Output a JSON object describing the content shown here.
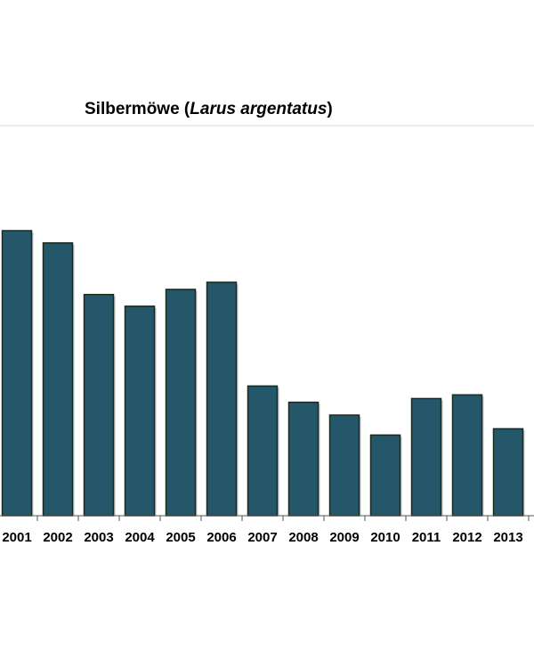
{
  "chart_data": {
    "type": "bar",
    "title_parts": {
      "common_name": "Silbermöwe",
      "open_paren": " (",
      "scientific_name": "Larus argentatus",
      "close_paren": ")"
    },
    "title": "Silbermöwe (Larus argentatus)",
    "xlabel": "",
    "ylabel": "",
    "categories": [
      "2001",
      "2002",
      "2003",
      "2004",
      "2005",
      "2006",
      "2007",
      "2008",
      "2009",
      "2010",
      "2011",
      "2012",
      "2013"
    ],
    "series": [
      {
        "values": [
          100,
          95.7,
          77.6,
          73.5,
          79.4,
          81.9,
          45.5,
          39.8,
          35.3,
          28.3,
          41.1,
          42.4,
          30.5
        ]
      }
    ],
    "ylim": [
      0,
      100
    ],
    "grid": false,
    "legend": "none",
    "colors": {
      "bar": "#245769",
      "bar_stroke": "#1a2a1f",
      "axis": "#555555",
      "top_rule": "#d9d9d9"
    }
  }
}
